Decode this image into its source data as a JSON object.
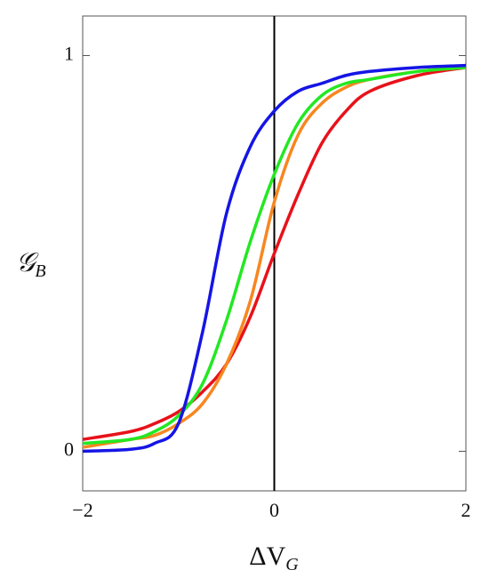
{
  "chart_data": {
    "type": "line",
    "xlabel": {
      "main": "ΔV",
      "sub": "G"
    },
    "ylabel": {
      "main": "𝒢",
      "sub": "B"
    },
    "x": [
      -2,
      -1.5,
      -1.25,
      -1,
      -0.75,
      -0.5,
      -0.25,
      0,
      0.25,
      0.5,
      0.75,
      1,
      1.5,
      2
    ],
    "series": [
      {
        "color": "#e8121a",
        "values": [
          0.03,
          0.05,
          0.07,
          0.1,
          0.15,
          0.22,
          0.34,
          0.5,
          0.65,
          0.78,
          0.86,
          0.91,
          0.95,
          0.97
        ]
      },
      {
        "color": "#f7861f",
        "values": [
          0.01,
          0.03,
          0.04,
          0.07,
          0.12,
          0.22,
          0.38,
          0.63,
          0.8,
          0.88,
          0.92,
          0.94,
          0.96,
          0.97
        ]
      },
      {
        "color": "#22e822",
        "values": [
          0.02,
          0.03,
          0.05,
          0.09,
          0.17,
          0.33,
          0.53,
          0.7,
          0.83,
          0.9,
          0.93,
          0.94,
          0.96,
          0.97
        ]
      },
      {
        "color": "#1515e6",
        "values": [
          0.0,
          0.005,
          0.02,
          0.07,
          0.3,
          0.6,
          0.77,
          0.86,
          0.91,
          0.93,
          0.95,
          0.96,
          0.97,
          0.975
        ]
      }
    ],
    "xlim": [
      -2,
      2
    ],
    "ylim": [
      -0.1,
      1.1
    ],
    "xticks": [
      {
        "value": -2,
        "label": "−2"
      },
      0,
      2
    ],
    "yticks": [
      0,
      1
    ],
    "vline": 0
  }
}
